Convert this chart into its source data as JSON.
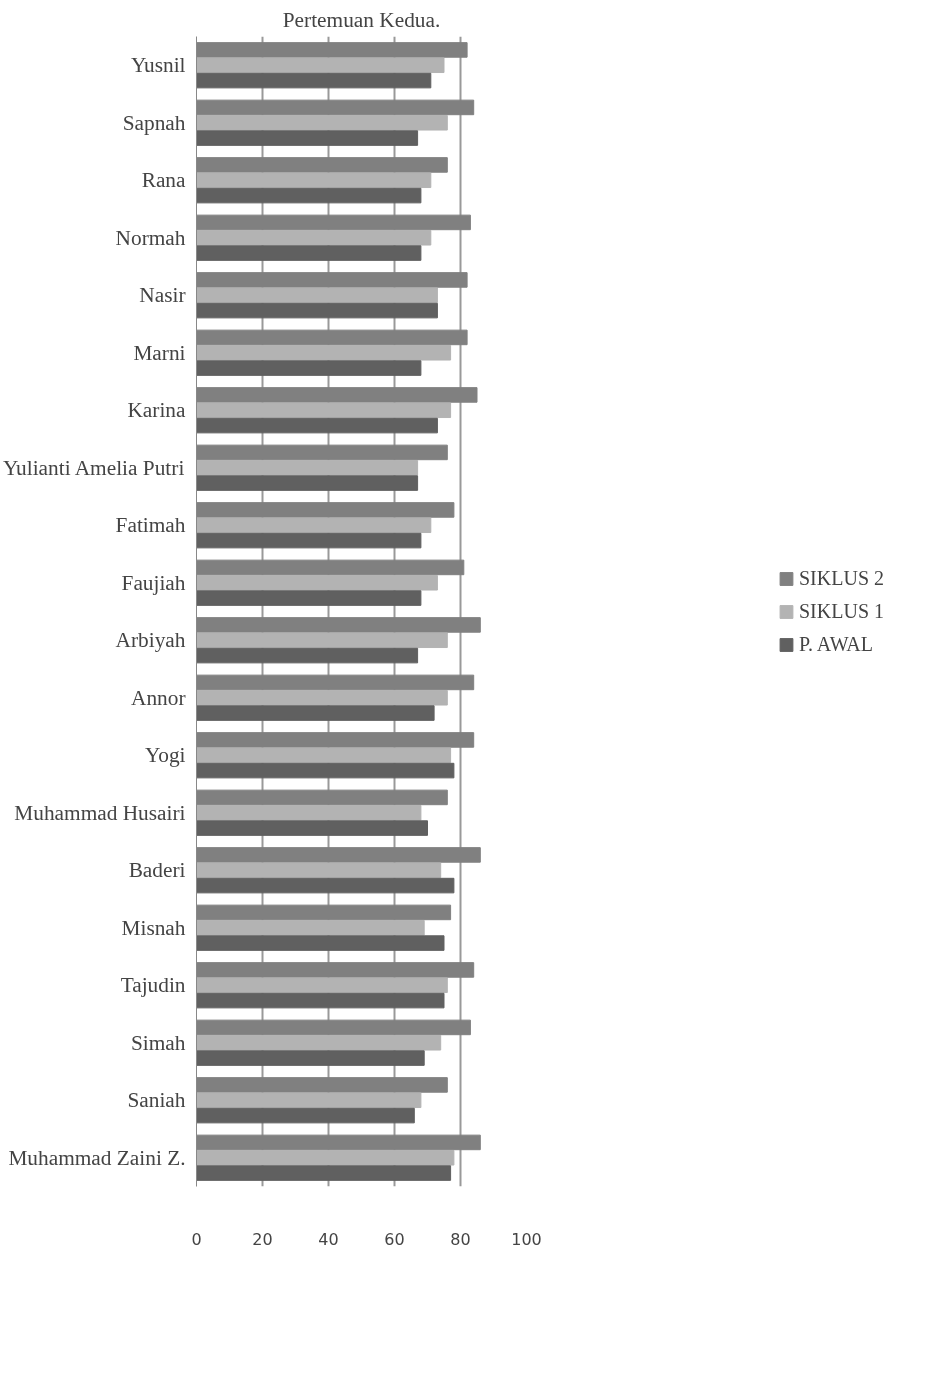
{
  "chart_data": {
    "type": "bar",
    "orientation": "horizontal",
    "title": "Pertemuan Kedua.",
    "categories": [
      "Yusnil",
      "Sapnah",
      "Rana",
      "Normah",
      "Nasir",
      "Marni",
      "Karina",
      "Yulianti Amelia Putri",
      "Fatimah",
      "Faujiah",
      "Arbiyah",
      "Annor",
      "Yogi",
      "Muhammad Husairi",
      "Baderi",
      "Misnah",
      "Tajudin",
      "Simah",
      "Saniah",
      "Muhammad Zaini Z."
    ],
    "series": [
      {
        "name": "SIKLUS 2",
        "color": "#808080",
        "values": [
          82,
          84,
          76,
          83,
          82,
          82,
          85,
          76,
          78,
          81,
          86,
          84,
          84,
          76,
          86,
          77,
          84,
          83,
          76,
          86
        ]
      },
      {
        "name": "SIKLUS 1",
        "color": "#b3b3b3",
        "values": [
          75,
          76,
          71,
          71,
          73,
          77,
          77,
          67,
          71,
          73,
          76,
          76,
          77,
          68,
          74,
          69,
          76,
          74,
          68,
          78
        ]
      },
      {
        "name": "P. AWAL",
        "color": "#606060",
        "values": [
          71,
          67,
          68,
          68,
          73,
          68,
          73,
          67,
          68,
          68,
          67,
          72,
          78,
          70,
          78,
          75,
          75,
          69,
          66,
          77
        ]
      }
    ],
    "xlim": [
      0,
      100
    ],
    "xticks": [
      0,
      20,
      40,
      60,
      80,
      100
    ],
    "grid": "x",
    "legend": "right"
  }
}
